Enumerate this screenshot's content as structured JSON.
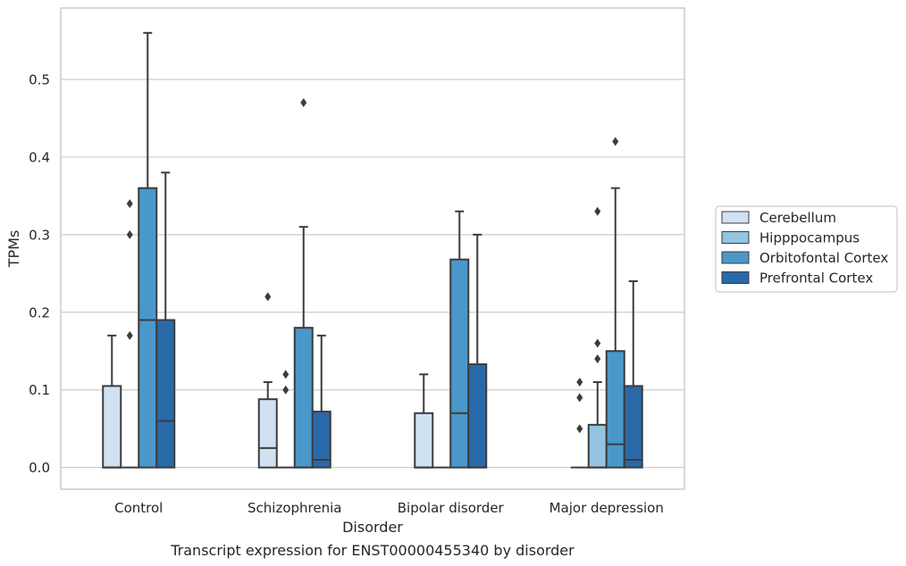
{
  "chart_data": {
    "type": "box",
    "title": "",
    "caption": "Transcript expression for ENST00000455340 by disorder",
    "xlabel": "Disorder",
    "ylabel": "TPMs",
    "ylim": [
      -0.028,
      0.592
    ],
    "yticks": [
      0.0,
      0.1,
      0.2,
      0.3,
      0.4,
      0.5
    ],
    "ytick_labels": [
      "0.0",
      "0.1",
      "0.2",
      "0.3",
      "0.4",
      "0.5"
    ],
    "grid": "horizontal",
    "legend_position": "right",
    "categories": [
      "Control",
      "Schizophrenia",
      "Bipolar disorder",
      "Major depression"
    ],
    "series": [
      {
        "name": "Cerebellum",
        "color": "#d0e1f2",
        "boxes": [
          {
            "whislo": 0,
            "q1": 0,
            "med": 0,
            "q3": 0.105,
            "whishi": 0.17,
            "fliers": []
          },
          {
            "whislo": 0,
            "q1": 0,
            "med": 0.025,
            "q3": 0.088,
            "whishi": 0.11,
            "fliers": [
              0.22
            ]
          },
          {
            "whislo": 0,
            "q1": 0,
            "med": 0,
            "q3": 0.07,
            "whishi": 0.12,
            "fliers": []
          },
          {
            "whislo": 0,
            "q1": 0,
            "med": 0,
            "q3": 0,
            "whishi": 0,
            "fliers": [
              0.05,
              0.09,
              0.11
            ]
          }
        ]
      },
      {
        "name": "Hipppocampus",
        "color": "#94c4df",
        "boxes": [
          {
            "whislo": 0,
            "q1": 0,
            "med": 0,
            "q3": 0,
            "whishi": 0,
            "fliers": [
              0.17,
              0.3,
              0.34
            ]
          },
          {
            "whislo": 0,
            "q1": 0,
            "med": 0,
            "q3": 0,
            "whishi": 0,
            "fliers": [
              0.1,
              0.12
            ]
          },
          {
            "whislo": 0,
            "q1": 0,
            "med": 0,
            "q3": 0,
            "whishi": 0,
            "fliers": []
          },
          {
            "whislo": 0,
            "q1": 0,
            "med": 0,
            "q3": 0.055,
            "whishi": 0.11,
            "fliers": [
              0.14,
              0.16,
              0.33
            ]
          }
        ]
      },
      {
        "name": "Orbitofontal Cortex",
        "color": "#4a98c9",
        "boxes": [
          {
            "whislo": 0,
            "q1": 0,
            "med": 0.19,
            "q3": 0.36,
            "whishi": 0.56,
            "fliers": []
          },
          {
            "whislo": 0,
            "q1": 0,
            "med": 0,
            "q3": 0.18,
            "whishi": 0.31,
            "fliers": [
              0.47
            ]
          },
          {
            "whislo": 0,
            "q1": 0,
            "med": 0.07,
            "q3": 0.268,
            "whishi": 0.33,
            "fliers": []
          },
          {
            "whislo": 0,
            "q1": 0,
            "med": 0.03,
            "q3": 0.15,
            "whishi": 0.36,
            "fliers": [
              0.42
            ]
          }
        ]
      },
      {
        "name": "Prefrontal Cortex",
        "color": "#2a69a8",
        "boxes": [
          {
            "whislo": 0,
            "q1": 0,
            "med": 0.06,
            "q3": 0.19,
            "whishi": 0.38,
            "fliers": []
          },
          {
            "whislo": 0,
            "q1": 0,
            "med": 0.01,
            "q3": 0.072,
            "whishi": 0.17,
            "fliers": []
          },
          {
            "whislo": 0,
            "q1": 0,
            "med": 0,
            "q3": 0.133,
            "whishi": 0.3,
            "fliers": []
          },
          {
            "whislo": 0,
            "q1": 0,
            "med": 0.01,
            "q3": 0.105,
            "whishi": 0.24,
            "fliers": []
          }
        ]
      }
    ]
  }
}
